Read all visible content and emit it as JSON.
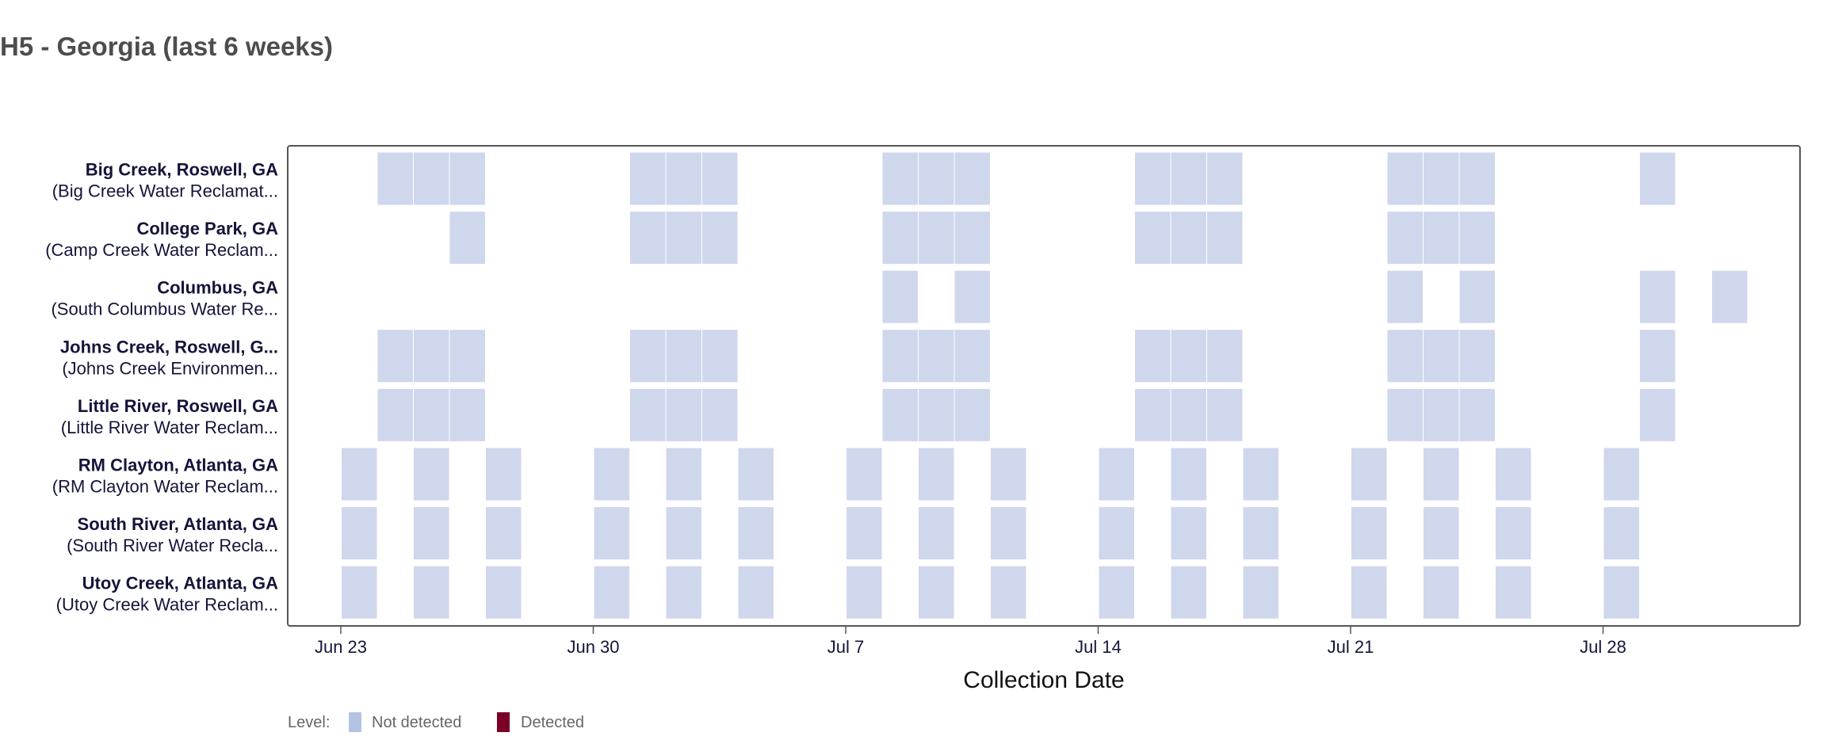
{
  "chart_data": {
    "type": "heatmap",
    "title": "H5 - Georgia (last 6 weeks)",
    "xlabel": "Collection Date",
    "ylabel": "",
    "x_ticks": [
      {
        "label": "Jun 23",
        "day": 0
      },
      {
        "label": "Jun 30",
        "day": 7
      },
      {
        "label": "Jul 7",
        "day": 14
      },
      {
        "label": "Jul 14",
        "day": 21
      },
      {
        "label": "Jul 21",
        "day": 28
      },
      {
        "label": "Jul 28",
        "day": 35
      }
    ],
    "x_range_days_from_jun23": [
      -1.5,
      40.3
    ],
    "legend": {
      "title": "Level:",
      "placement": "bottom-left",
      "items": [
        {
          "label": "Not detected",
          "color": "#b4c3e4"
        },
        {
          "label": "Detected",
          "color": "#7a0027"
        }
      ]
    },
    "tile_color_not_detected": "#cfd7ed",
    "rows": [
      {
        "name": "Big Creek, Roswell, GA",
        "facility": "(Big Creek Water Reclamat...",
        "level": "Not detected",
        "days": [
          1,
          2,
          3,
          8,
          9,
          10,
          15,
          16,
          17,
          22,
          23,
          24,
          29,
          30,
          31,
          36
        ]
      },
      {
        "name": "College Park, GA",
        "facility": "(Camp Creek Water Reclam...",
        "level": "Not detected",
        "days": [
          3,
          8,
          9,
          10,
          15,
          16,
          17,
          22,
          23,
          24,
          29,
          30,
          31
        ]
      },
      {
        "name": "Columbus, GA",
        "facility": "(South Columbus Water Re...",
        "level": "Not detected",
        "days": [
          15,
          17,
          29,
          31,
          36,
          38
        ]
      },
      {
        "name": "Johns Creek, Roswell, G...",
        "facility": "(Johns Creek Environmen...",
        "level": "Not detected",
        "days": [
          1,
          2,
          3,
          8,
          9,
          10,
          15,
          16,
          17,
          22,
          23,
          24,
          29,
          30,
          31,
          36
        ]
      },
      {
        "name": "Little River, Roswell, GA",
        "facility": "(Little River Water Reclam...",
        "level": "Not detected",
        "days": [
          1,
          2,
          3,
          8,
          9,
          10,
          15,
          16,
          17,
          22,
          23,
          24,
          29,
          30,
          31,
          36
        ]
      },
      {
        "name": "RM Clayton, Atlanta, GA",
        "facility": "(RM Clayton Water Reclam...",
        "level": "Not detected",
        "days": [
          0,
          2,
          4,
          7,
          9,
          11,
          14,
          16,
          18,
          21,
          23,
          25,
          28,
          30,
          32,
          35
        ]
      },
      {
        "name": "South River, Atlanta, GA",
        "facility": "(South River Water Recla...",
        "level": "Not detected",
        "days": [
          0,
          2,
          4,
          7,
          9,
          11,
          14,
          16,
          18,
          21,
          23,
          25,
          28,
          30,
          32,
          35
        ]
      },
      {
        "name": "Utoy Creek, Atlanta, GA",
        "facility": "(Utoy Creek Water Reclam...",
        "level": "Not detected",
        "days": [
          0,
          2,
          4,
          7,
          9,
          11,
          14,
          16,
          18,
          21,
          23,
          25,
          28,
          30,
          32,
          35
        ]
      }
    ]
  }
}
